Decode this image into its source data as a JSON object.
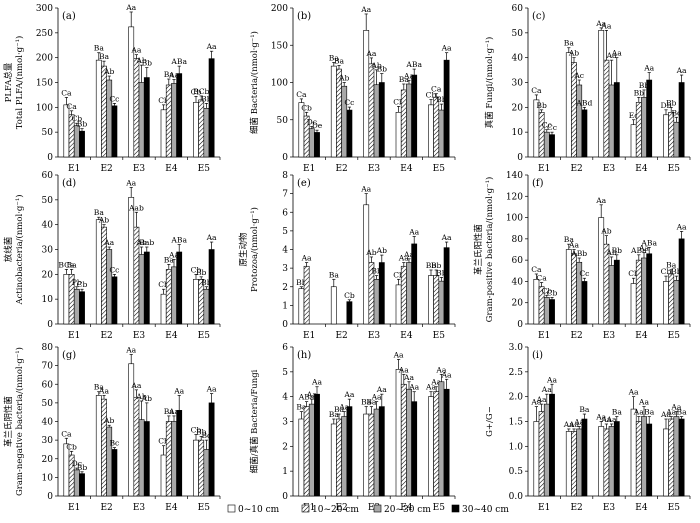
{
  "chart_data": [
    {
      "panel": "(a)",
      "type": "bar",
      "categories": [
        "E1",
        "E2",
        "E3",
        "E4",
        "E5"
      ],
      "ylabel": [
        "PLFA总量",
        "Total PLFA/(nmol·g⁻¹)"
      ],
      "ylim": [
        0,
        300
      ],
      "yticks": [
        0,
        50,
        100,
        150,
        200,
        250,
        300
      ],
      "series": [
        {
          "name": "0~10 cm",
          "values": [
            105,
            195,
            262,
            95,
            110
          ],
          "errors": [
            15,
            15,
            30,
            10,
            12
          ],
          "labels": [
            "Ca",
            "Ba",
            "Aa",
            "Cb",
            "Cb"
          ]
        },
        {
          "name": "10~20 cm",
          "values": [
            85,
            183,
            198,
            145,
            115
          ],
          "errors": [
            8,
            10,
            8,
            12,
            8
          ],
          "labels": [
            "Ca",
            "Ba",
            "Aa",
            "Ba",
            "BCb"
          ]
        },
        {
          "name": "20~30 cm",
          "values": [
            63,
            155,
            150,
            148,
            98
          ],
          "errors": [
            5,
            8,
            35,
            8,
            10
          ],
          "labels": [
            "Cb",
            "Ab",
            "Ab",
            "Aa",
            "Bb"
          ]
        },
        {
          "name": "30~40 cm",
          "values": [
            52,
            103,
            160,
            168,
            198
          ],
          "errors": [
            5,
            5,
            20,
            15,
            15
          ],
          "labels": [
            "Bb",
            "Cc",
            "Bb",
            "ABa",
            "Aa"
          ]
        }
      ]
    },
    {
      "panel": "(b)",
      "type": "bar",
      "categories": [
        "E1",
        "E2",
        "E3",
        "E4",
        "E5"
      ],
      "ylabel": [
        "细菌 Bacteria/(nmol·g⁻¹)"
      ],
      "ylim": [
        0,
        200
      ],
      "yticks": [
        0,
        50,
        100,
        150,
        200
      ],
      "series": [
        {
          "name": "0~10 cm",
          "values": [
            73,
            122,
            170,
            60,
            70
          ],
          "errors": [
            5,
            5,
            22,
            8,
            7
          ],
          "labels": [
            "Ca",
            "Ba",
            "Aa",
            "Cb",
            "Cb"
          ]
        },
        {
          "name": "10~20 cm",
          "values": [
            55,
            118,
            125,
            90,
            80
          ],
          "errors": [
            5,
            5,
            8,
            8,
            5
          ],
          "labels": [
            "Cb",
            "Ba",
            "Aa",
            "Ba",
            "Ca"
          ]
        },
        {
          "name": "20~30 cm",
          "values": [
            38,
            95,
            97,
            98,
            63
          ],
          "errors": [
            3,
            5,
            20,
            5,
            8
          ],
          "labels": [
            "Dc",
            "Ab",
            "Ab",
            "Aa",
            "Bb"
          ]
        },
        {
          "name": "30~40 cm",
          "values": [
            33,
            63,
            100,
            110,
            130
          ],
          "errors": [
            3,
            4,
            12,
            8,
            10
          ],
          "labels": [
            "De",
            "Cc",
            "Bb",
            "ABa",
            "Aa"
          ]
        }
      ]
    },
    {
      "panel": "(c)",
      "type": "bar",
      "categories": [
        "E1",
        "E2",
        "E3",
        "E4",
        "E5"
      ],
      "ylabel": [
        "真菌 Fungi/(nmol·g⁻¹)"
      ],
      "ylim": [
        0,
        60
      ],
      "yticks": [
        0,
        10,
        20,
        30,
        40,
        50,
        60
      ],
      "series": [
        {
          "name": "0~10 cm",
          "values": [
            23,
            42,
            51,
            13,
            17
          ],
          "errors": [
            2,
            2,
            1,
            2,
            2
          ],
          "labels": [
            "Ca",
            "Ba",
            "Aa",
            "Ec",
            "Db"
          ]
        },
        {
          "name": "10~20 cm",
          "values": [
            18,
            38,
            39,
            22,
            18
          ],
          "errors": [
            1,
            2,
            12,
            2,
            2
          ],
          "labels": [
            "Bb",
            "Ab",
            "Aa",
            "Bb",
            "Bb"
          ]
        },
        {
          "name": "20~30 cm",
          "values": [
            10,
            29,
            29,
            24,
            14
          ],
          "errors": [
            1,
            2,
            10,
            3,
            2
          ],
          "labels": [
            "Cc",
            "Ac",
            "Aa",
            "Bb",
            "Bc"
          ]
        },
        {
          "name": "30~40 cm",
          "values": [
            9,
            19,
            30,
            31,
            30
          ],
          "errors": [
            1,
            1,
            10,
            3,
            3
          ],
          "labels": [
            "Cc",
            "ABd",
            "Aa",
            "Aa",
            "Aa"
          ]
        }
      ]
    },
    {
      "panel": "(d)",
      "type": "bar",
      "categories": [
        "E1",
        "E2",
        "E3",
        "E4",
        "E5"
      ],
      "ylabel": [
        "放线菌",
        "Actinobacteria/(nmol·g⁻¹)"
      ],
      "ylim": [
        0,
        60
      ],
      "yticks": [
        0,
        10,
        20,
        30,
        40,
        50,
        60
      ],
      "series": [
        {
          "name": "0~10 cm",
          "values": [
            20,
            42,
            51,
            12,
            18
          ],
          "errors": [
            2,
            1,
            4,
            2,
            2
          ],
          "labels": [
            "BCa",
            "Ba",
            "Aa",
            "Cb",
            "Cb"
          ]
        },
        {
          "name": "10~20 cm",
          "values": [
            20,
            39,
            39,
            22,
            18
          ],
          "errors": [
            2,
            1,
            6,
            2,
            1
          ],
          "labels": [
            "Ba",
            "Ab",
            "Aab",
            "Ba",
            "Bb"
          ]
        },
        {
          "name": "20~30 cm",
          "values": [
            14,
            30,
            28,
            23,
            14
          ],
          "errors": [
            1,
            1,
            3,
            3,
            1
          ],
          "labels": [
            "Pb",
            "Aa",
            "Ab",
            "Aa",
            "Bb"
          ]
        },
        {
          "name": "30~40 cm",
          "values": [
            13,
            19,
            29,
            29,
            30
          ],
          "errors": [
            1,
            1,
            2,
            3,
            3
          ],
          "labels": [
            "Cb",
            "Cc",
            "Bab",
            "ABa",
            "Aa"
          ]
        }
      ]
    },
    {
      "panel": "(e)",
      "type": "bar",
      "categories": [
        "E1",
        "E2",
        "E3",
        "E4",
        "E5"
      ],
      "ylabel": [
        "原生动物",
        "Protozoa/(nmol·g⁻¹)"
      ],
      "ylim": [
        0,
        8
      ],
      "yticks": [
        0,
        1,
        2,
        3,
        4,
        5,
        6,
        7,
        8
      ],
      "series": [
        {
          "name": "0~10 cm",
          "values": [
            1.9,
            2.0,
            6.4,
            2.1,
            2.6
          ],
          "errors": [
            0.1,
            0.4,
            0.6,
            0.3,
            0.3
          ],
          "labels": [
            "Bb",
            "Ba",
            "Aa",
            "Cb",
            "Bb"
          ]
        },
        {
          "name": "10~20 cm",
          "values": [
            3.1,
            null,
            3.3,
            3.1,
            2.6
          ],
          "errors": [
            0.2,
            null,
            0.3,
            0.2,
            0.3
          ],
          "labels": [
            "Aa",
            "",
            "Ab",
            "Aa",
            "Bb"
          ]
        },
        {
          "name": "20~30 cm",
          "values": [
            null,
            null,
            2.4,
            3.3,
            2.3
          ],
          "errors": [
            null,
            null,
            0.2,
            0.2,
            0.2
          ],
          "labels": [
            "",
            "",
            "Bb",
            "Aa",
            "Bb"
          ]
        },
        {
          "name": "30~40 cm",
          "values": [
            null,
            1.2,
            3.3,
            4.3,
            4.1
          ],
          "errors": [
            null,
            0.1,
            0.4,
            0.4,
            0.3
          ],
          "labels": [
            "",
            "Cb",
            "Ab",
            "Aa",
            "Aa"
          ]
        }
      ]
    },
    {
      "panel": "(f)",
      "type": "bar",
      "categories": [
        "E1",
        "E2",
        "E3",
        "E4",
        "E5"
      ],
      "ylabel": [
        "革兰氏阳性菌",
        "Gram-positive bacteria/(nmol·g⁻¹)"
      ],
      "ylim": [
        0,
        140
      ],
      "yticks": [
        0,
        20,
        40,
        60,
        80,
        100,
        120,
        140
      ],
      "series": [
        {
          "name": "0~10 cm",
          "values": [
            42,
            70,
            100,
            38,
            40
          ],
          "errors": [
            5,
            5,
            12,
            5,
            5
          ],
          "labels": [
            "Ca",
            "Ba",
            "Aa",
            "Cb",
            "Cb"
          ]
        },
        {
          "name": "10~20 cm",
          "values": [
            35,
            66,
            75,
            60,
            47
          ],
          "errors": [
            4,
            4,
            8,
            5,
            4
          ],
          "labels": [
            "Ca",
            "Aa",
            "Ab",
            "ABa",
            "Ba"
          ]
        },
        {
          "name": "20~30 cm",
          "values": [
            25,
            58,
            55,
            62,
            41
          ],
          "errors": [
            2,
            4,
            8,
            5,
            4
          ],
          "labels": [
            "Cb",
            "ABb",
            "Ab",
            "Aa",
            "Bb"
          ]
        },
        {
          "name": "30~40 cm",
          "values": [
            23,
            40,
            60,
            66,
            80
          ],
          "errors": [
            2,
            3,
            5,
            6,
            7
          ],
          "labels": [
            "Cb",
            "Cc",
            "Bb",
            "ABa",
            "Aa"
          ]
        }
      ]
    },
    {
      "panel": "(g)",
      "type": "bar",
      "categories": [
        "E1",
        "E2",
        "E3",
        "E4",
        "E5"
      ],
      "ylabel": [
        "革兰氏阴性菌",
        "Gram-negative bacteria/(nmol·g⁻¹)"
      ],
      "ylim": [
        0,
        80
      ],
      "yticks": [
        0,
        10,
        20,
        30,
        40,
        50,
        60,
        70,
        80
      ],
      "series": [
        {
          "name": "0~10 cm",
          "values": [
            28,
            54,
            71,
            22,
            30
          ],
          "errors": [
            3,
            2,
            5,
            5,
            3
          ],
          "labels": [
            "Ca",
            "Ba",
            "Aa",
            "Cb",
            "Cb"
          ]
        },
        {
          "name": "10~20 cm",
          "values": [
            22,
            52,
            53,
            40,
            30
          ],
          "errors": [
            2,
            2,
            4,
            3,
            2
          ],
          "labels": [
            "Cb",
            "Aa",
            "Aa",
            "Ba",
            "Bb"
          ]
        },
        {
          "name": "20~30 cm",
          "values": [
            14,
            37,
            41,
            40,
            25
          ],
          "errors": [
            1,
            1,
            10,
            3,
            5
          ],
          "labels": [
            "Dc",
            "Ab",
            "Ab",
            "Aa",
            "Bc"
          ]
        },
        {
          "name": "30~40 cm",
          "values": [
            12,
            25,
            40,
            46,
            50
          ],
          "errors": [
            1,
            1,
            10,
            8,
            5
          ],
          "labels": [
            "Bb",
            "Bc",
            "Ab",
            "Aa",
            "Aa"
          ]
        }
      ]
    },
    {
      "panel": "(h)",
      "type": "bar",
      "categories": [
        "E1",
        "E2",
        "E3",
        "E4",
        "E5"
      ],
      "ylabel": [
        "细菌/真菌 Bacteria/Fungi"
      ],
      "ylim": [
        0,
        6
      ],
      "yticks": [
        0,
        1,
        2,
        3,
        4,
        5,
        6
      ],
      "series": [
        {
          "name": "0~10 cm",
          "values": [
            3.1,
            2.9,
            3.3,
            5.1,
            4.0
          ],
          "errors": [
            0.3,
            0.2,
            0.3,
            0.4,
            0.2
          ],
          "labels": [
            "Ba",
            "Ba",
            "Ba",
            "Aa",
            "Aa"
          ]
        },
        {
          "name": "10~20 cm",
          "values": [
            3.6,
            3.1,
            3.3,
            4.5,
            4.2
          ],
          "errors": [
            0.2,
            0.2,
            0.3,
            0.4,
            0.2
          ],
          "labels": [
            "ABa",
            "Ba",
            "Ba",
            "Aa",
            "Aa"
          ]
        },
        {
          "name": "20~30 cm",
          "values": [
            3.7,
            3.2,
            3.5,
            4.3,
            4.6
          ],
          "errors": [
            0.2,
            0.2,
            0.3,
            0.3,
            0.3
          ],
          "labels": [
            "Aa",
            "Aa",
            "Aa",
            "Aa",
            "Aa"
          ]
        },
        {
          "name": "30~40 cm",
          "values": [
            4.1,
            3.6,
            3.6,
            3.8,
            4.3
          ],
          "errors": [
            0.3,
            0.3,
            0.5,
            0.4,
            0.4
          ],
          "labels": [
            "Aa",
            "Aa",
            "Aa",
            "Aa",
            "Aa"
          ]
        }
      ]
    },
    {
      "panel": "(i)",
      "type": "bar",
      "categories": [
        "E1",
        "E2",
        "E3",
        "E4",
        "E5"
      ],
      "ylabel": [
        "G+/G−"
      ],
      "ylim": [
        0,
        3
      ],
      "yticks": [
        0.0,
        0.5,
        1.0,
        1.5,
        2.0,
        2.5,
        3.0
      ],
      "series": [
        {
          "name": "0~10 cm",
          "values": [
            1.5,
            1.3,
            1.4,
            1.75,
            1.35
          ],
          "errors": [
            0.3,
            0.05,
            0.1,
            0.25,
            0.2
          ],
          "labels": [
            "Aa",
            "Aa",
            "Aa",
            "Aa",
            "Aa"
          ]
        },
        {
          "name": "10~20 cm",
          "values": [
            1.7,
            1.3,
            1.35,
            1.5,
            1.55
          ],
          "errors": [
            0.15,
            0.05,
            0.1,
            0.1,
            0.05
          ],
          "labels": [
            "Aa",
            "Aa",
            "Aa",
            "Aa",
            "Aa"
          ]
        },
        {
          "name": "20~30 cm",
          "values": [
            1.85,
            1.35,
            1.4,
            1.6,
            1.6
          ],
          "errors": [
            0.2,
            0.05,
            0.05,
            0.2,
            0.1
          ],
          "labels": [
            "Aa",
            "Aa",
            "Aa",
            "Aa",
            "Aa"
          ]
        },
        {
          "name": "30~40 cm",
          "values": [
            2.05,
            1.55,
            1.5,
            1.45,
            1.55
          ],
          "errors": [
            0.2,
            0.1,
            0.1,
            0.15,
            0.05
          ],
          "labels": [
            "Aa",
            "Ba",
            "Ba",
            "Ba",
            "Ba"
          ]
        }
      ]
    }
  ],
  "legend": [
    "0~10 cm",
    "10~20 cm",
    "20~30 cm",
    "30~40 cm"
  ],
  "colors": {
    "bar_stroke": "#000000",
    "bar_fill_0": "#ffffff",
    "bar_fill_2": "#a8a8a8",
    "bar_fill_3": "#000000"
  }
}
